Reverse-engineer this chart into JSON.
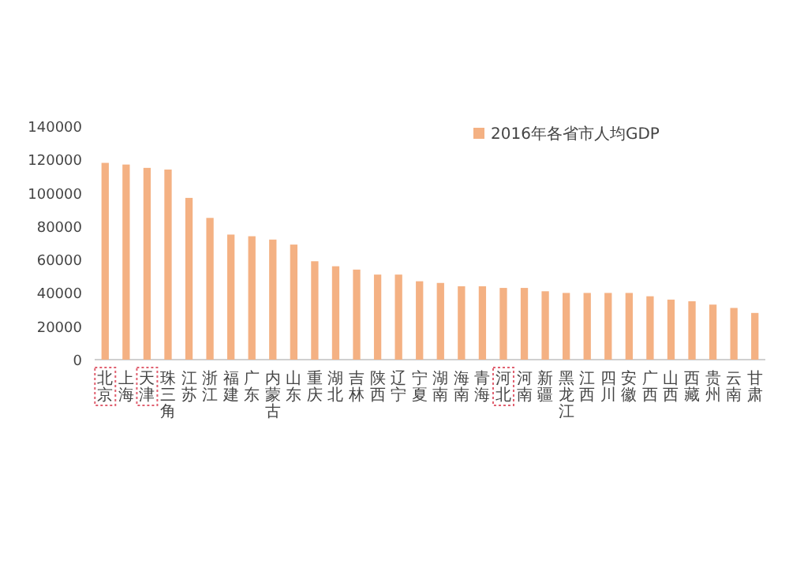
{
  "chart_data": {
    "type": "bar",
    "categories": [
      "北京",
      "上海",
      "天津",
      "珠三角",
      "江苏",
      "浙江",
      "福建",
      "广东",
      "内蒙古",
      "山东",
      "重庆",
      "湖北",
      "吉林",
      "陕西",
      "辽宁",
      "宁夏",
      "湖南",
      "海南",
      "青海",
      "河北",
      "河南",
      "新疆",
      "黑龙江",
      "江西",
      "四川",
      "安徽",
      "广西",
      "山西",
      "西藏",
      "贵州",
      "云南",
      "甘肃"
    ],
    "series": [
      {
        "name": "2016年各省市人均GDP",
        "color": "#f4b183",
        "values": [
          118000,
          117000,
          115000,
          114000,
          97000,
          85000,
          75000,
          74000,
          72000,
          69000,
          59000,
          56000,
          54000,
          51000,
          51000,
          47000,
          46000,
          44000,
          44000,
          43000,
          43000,
          41000,
          40000,
          40000,
          40000,
          40000,
          38000,
          36000,
          35000,
          33000,
          31000,
          28000
        ]
      }
    ],
    "ylim": [
      0,
      140000
    ],
    "yticks": [
      0,
      20000,
      40000,
      60000,
      80000,
      100000,
      120000,
      140000
    ],
    "grid": false,
    "legend": "top right"
  }
}
